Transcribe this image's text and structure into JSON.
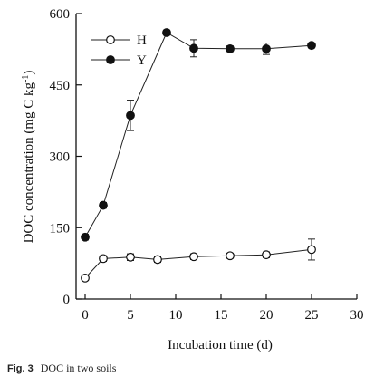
{
  "chart_data": {
    "type": "line",
    "title": "",
    "xlabel": "Incubation time (d)",
    "ylabel": {
      "main": "DOC concentration (mg C kg",
      "sup": "-1",
      "end": ")"
    },
    "xlim": [
      -1,
      30
    ],
    "ylim": [
      0,
      600
    ],
    "xticks": [
      0,
      5,
      10,
      15,
      20,
      25,
      30
    ],
    "yticks": [
      0,
      150,
      300,
      450,
      600
    ],
    "grid": false,
    "legend_position": "top-left",
    "series": [
      {
        "name": "H",
        "marker": "open-circle",
        "x": [
          0,
          2,
          5,
          8,
          12,
          16,
          20,
          25
        ],
        "y": [
          44,
          85,
          88,
          83,
          89,
          91,
          93,
          104
        ],
        "err": [
          5,
          6,
          7,
          6,
          6,
          5,
          6,
          22
        ]
      },
      {
        "name": "Y",
        "marker": "filled-circle",
        "x": [
          0,
          2,
          5,
          9,
          12,
          16,
          20,
          25
        ],
        "y": [
          130,
          197,
          386,
          560,
          527,
          526,
          526,
          533
        ],
        "err": [
          6,
          6,
          32,
          5,
          18,
          6,
          12,
          5
        ]
      }
    ]
  },
  "caption": {
    "label": "Fig. 3",
    "text": "DOC in two soils"
  }
}
